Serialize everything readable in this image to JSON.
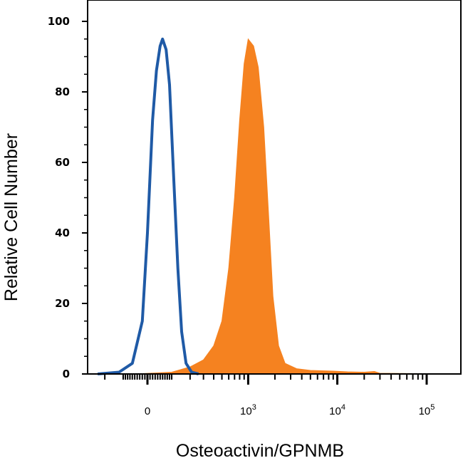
{
  "chart_data": {
    "type": "area",
    "title": "",
    "xlabel": "Osteoactivin/GPNMB",
    "ylabel": "Relative Cell Number",
    "ylim": [
      0,
      100
    ],
    "yticks": [
      0,
      20,
      40,
      60,
      80,
      100
    ],
    "x_scale": "biexponential",
    "xticks": [
      {
        "label": "0",
        "exp": "",
        "value": 0
      },
      {
        "label": "10",
        "exp": "3",
        "value": 1000
      },
      {
        "label": "10",
        "exp": "4",
        "value": 10000
      },
      {
        "label": "10",
        "exp": "5",
        "value": 100000
      }
    ],
    "grid": false,
    "legend": "none",
    "series": [
      {
        "style": "outline",
        "color": "#1f5aa6",
        "points": [
          [
            -250,
            0
          ],
          [
            -120,
            0.5
          ],
          [
            -60,
            3
          ],
          [
            -20,
            15
          ],
          [
            0,
            40
          ],
          [
            20,
            72
          ],
          [
            35,
            86
          ],
          [
            50,
            93
          ],
          [
            60,
            95
          ],
          [
            75,
            92
          ],
          [
            90,
            82
          ],
          [
            110,
            55
          ],
          [
            130,
            30
          ],
          [
            150,
            12
          ],
          [
            175,
            3
          ],
          [
            210,
            0.5
          ],
          [
            260,
            0
          ]
        ]
      },
      {
        "style": "filled",
        "color": "#f58220",
        "points": [
          [
            -250,
            0
          ],
          [
            -50,
            0
          ],
          [
            100,
            0.5
          ],
          [
            200,
            2
          ],
          [
            300,
            4
          ],
          [
            400,
            8
          ],
          [
            500,
            15
          ],
          [
            600,
            30
          ],
          [
            700,
            50
          ],
          [
            800,
            72
          ],
          [
            900,
            88
          ],
          [
            1000,
            95
          ],
          [
            1150,
            93
          ],
          [
            1300,
            87
          ],
          [
            1500,
            70
          ],
          [
            1700,
            45
          ],
          [
            1900,
            22
          ],
          [
            2200,
            8
          ],
          [
            2600,
            3
          ],
          [
            3500,
            1.5
          ],
          [
            5000,
            1
          ],
          [
            9000,
            0.8
          ],
          [
            13000,
            0.6
          ],
          [
            20000,
            0.5
          ],
          [
            26000,
            0.7
          ],
          [
            30000,
            0.2
          ],
          [
            200000,
            0
          ]
        ]
      }
    ]
  }
}
